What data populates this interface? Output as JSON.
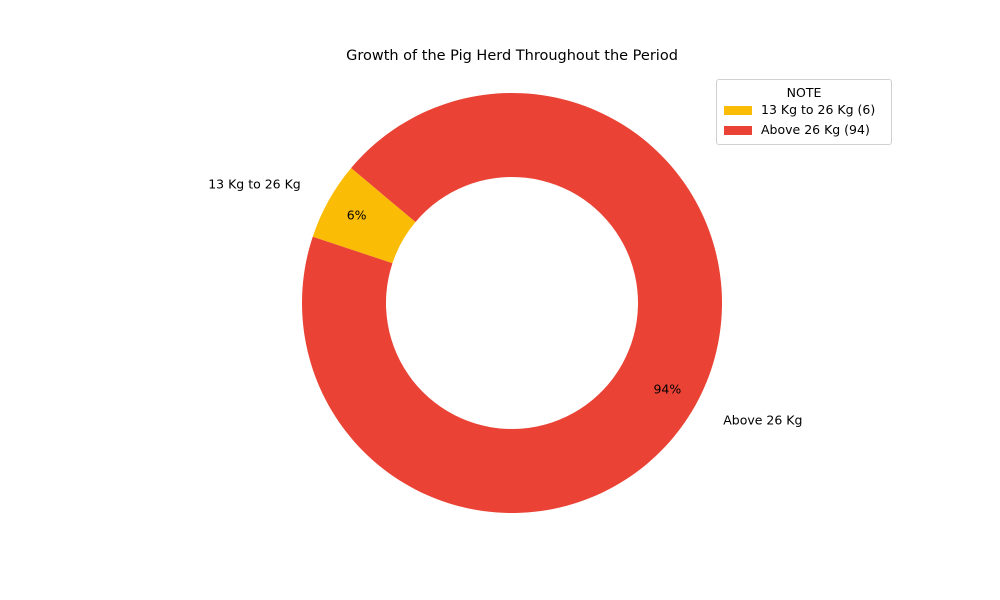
{
  "chart_data": {
    "type": "pie",
    "variant": "donut",
    "title": "Growth of the Pig Herd Throughout the Period",
    "categories": [
      "13 Kg to 26 Kg",
      "Above 26 Kg"
    ],
    "values": [
      6,
      94
    ],
    "percent_labels": [
      "6%",
      "94%"
    ],
    "colors": [
      "#fbbc05",
      "#ea4335"
    ],
    "start_angle_deg": 140,
    "direction": "counterclockwise",
    "legend": {
      "title": "NOTE",
      "position": "top-right",
      "entries": [
        "13 Kg to 26 Kg (6)",
        "Above 26 Kg (94)"
      ]
    }
  }
}
